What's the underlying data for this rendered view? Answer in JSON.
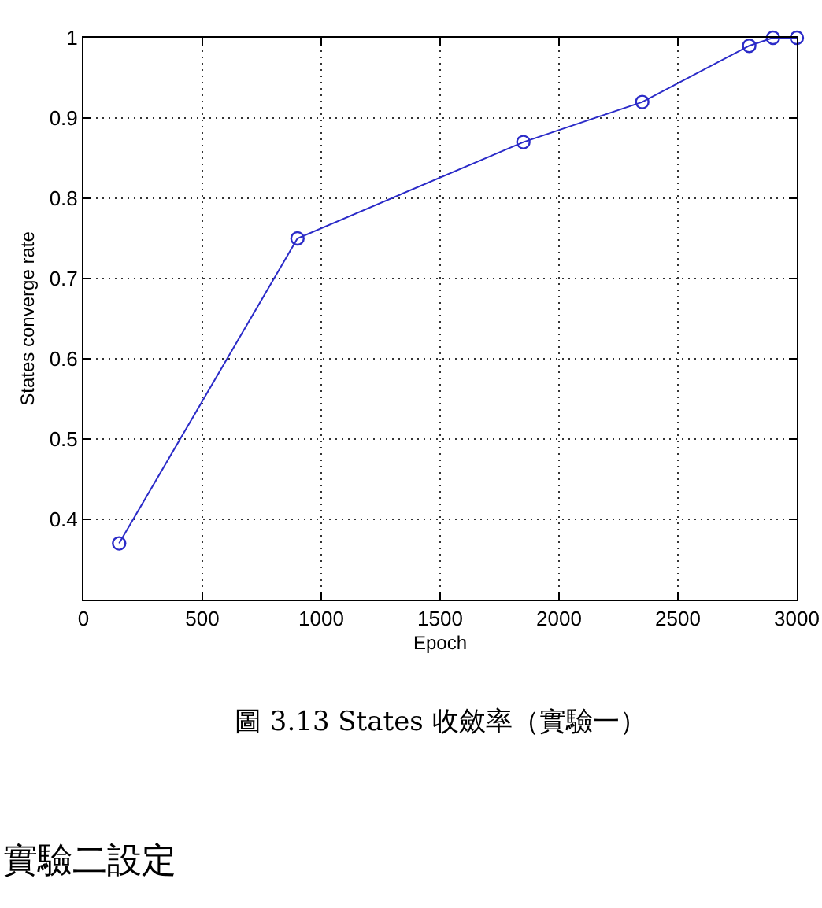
{
  "chart_data": {
    "type": "line",
    "xlabel": "Epoch",
    "ylabel": "States converge rate",
    "x": [
      150,
      900,
      1850,
      2350,
      2800,
      2900,
      3000
    ],
    "values": [
      0.37,
      0.75,
      0.87,
      0.92,
      0.99,
      1,
      1
    ],
    "color": "#2b2bc8",
    "xlim": [
      0,
      3000
    ],
    "ylim": [
      0.3,
      1
    ],
    "xticks": [
      0,
      500,
      1000,
      1500,
      2000,
      2500,
      3000
    ],
    "yticks": [
      0.4,
      0.5,
      0.6,
      0.7,
      0.8,
      0.9,
      1
    ],
    "grid": true,
    "marker": "circle",
    "line_style": "solid",
    "annotations": [
      "圖 3.13 States 收斂率（實驗一）",
      "實驗二設定"
    ]
  }
}
